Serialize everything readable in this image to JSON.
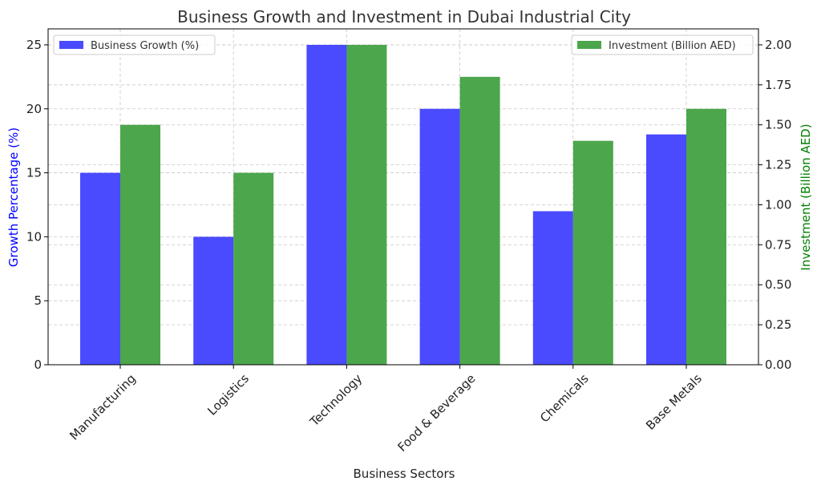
{
  "chart_data": {
    "type": "bar",
    "title": "Business Growth and Investment in Dubai Industrial City",
    "xlabel": "Business Sectors",
    "ylabel_left": "Growth Percentage (%)",
    "ylabel_right": "Investment (Billion AED)",
    "categories": [
      "Manufacturing",
      "Logistics",
      "Technology",
      "Food & Beverage",
      "Chemicals",
      "Base Metals"
    ],
    "series": [
      {
        "name": "Business Growth (%)",
        "axis": "left",
        "color": "#4a4aff",
        "values": [
          15,
          10,
          25,
          20,
          12,
          18
        ]
      },
      {
        "name": "Investment (Billion AED)",
        "axis": "right",
        "color": "#4ca64c",
        "values": [
          1.5,
          1.2,
          2.0,
          1.8,
          1.4,
          1.6
        ]
      }
    ],
    "ylim_left": [
      0,
      26.25
    ],
    "ylim_right": [
      0,
      2.1
    ],
    "yticks_left": [
      "0",
      "5",
      "10",
      "15",
      "20",
      "25"
    ],
    "yticks_right": [
      "0.00",
      "0.25",
      "0.50",
      "0.75",
      "1.00",
      "1.25",
      "1.50",
      "1.75",
      "2.00"
    ],
    "grid": true,
    "legend_left": "top-left",
    "legend_right": "top-right",
    "ylabel_left_color": "#0000ff",
    "ylabel_right_color": "#008000"
  }
}
